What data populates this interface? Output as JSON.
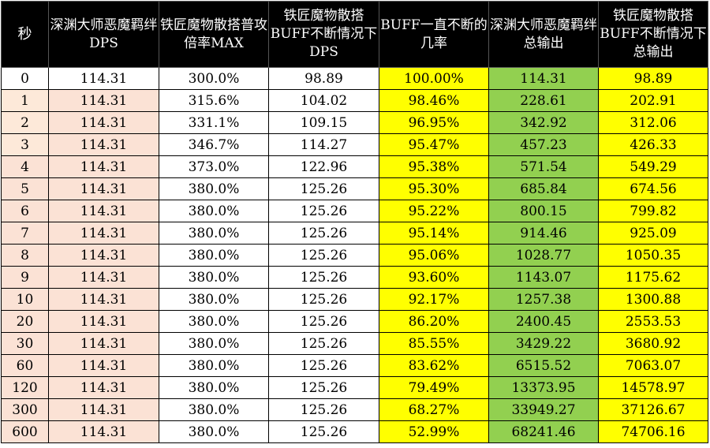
{
  "colors": {
    "header_bg": "#000000",
    "header_text": "#ffffff",
    "yellow": "#ffff00",
    "green": "#92d050",
    "peach": "#fbe2d5",
    "light_peach": "#fde9d9"
  },
  "headers": [
    "秒",
    "深渊大师恶魔羁绊DPS",
    "铁匠魔物散搭普攻倍率MAX",
    "铁匠魔物散搭BUFF不断情况下DPS",
    "BUFF一直不断的几率",
    "深渊大师恶魔羁绊总输出",
    "铁匠魔物散搭BUFF不断情况下总输出"
  ],
  "rows": [
    [
      "0",
      "114.31",
      "300.0%",
      "98.89",
      "100.00%",
      "114.31",
      "98.89"
    ],
    [
      "1",
      "114.31",
      "315.6%",
      "104.02",
      "98.46%",
      "228.61",
      "202.91"
    ],
    [
      "2",
      "114.31",
      "331.1%",
      "109.15",
      "96.95%",
      "342.92",
      "312.06"
    ],
    [
      "3",
      "114.31",
      "346.7%",
      "114.27",
      "95.47%",
      "457.23",
      "426.33"
    ],
    [
      "4",
      "114.31",
      "373.0%",
      "122.96",
      "95.38%",
      "571.54",
      "549.29"
    ],
    [
      "5",
      "114.31",
      "380.0%",
      "125.26",
      "95.30%",
      "685.84",
      "674.56"
    ],
    [
      "6",
      "114.31",
      "380.0%",
      "125.26",
      "95.22%",
      "800.15",
      "799.82"
    ],
    [
      "7",
      "114.31",
      "380.0%",
      "125.26",
      "95.14%",
      "914.46",
      "925.09"
    ],
    [
      "8",
      "114.31",
      "380.0%",
      "125.26",
      "95.06%",
      "1028.77",
      "1050.35"
    ],
    [
      "9",
      "114.31",
      "380.0%",
      "125.26",
      "93.60%",
      "1143.07",
      "1175.62"
    ],
    [
      "10",
      "114.31",
      "380.0%",
      "125.26",
      "92.17%",
      "1257.38",
      "1300.88"
    ],
    [
      "20",
      "114.31",
      "380.0%",
      "125.26",
      "86.20%",
      "2400.45",
      "2553.53"
    ],
    [
      "30",
      "114.31",
      "380.0%",
      "125.26",
      "85.55%",
      "3429.22",
      "3680.92"
    ],
    [
      "60",
      "114.31",
      "380.0%",
      "125.26",
      "83.62%",
      "6515.52",
      "7063.07"
    ],
    [
      "120",
      "114.31",
      "380.0%",
      "125.26",
      "79.49%",
      "13373.95",
      "14578.97"
    ],
    [
      "300",
      "114.31",
      "380.0%",
      "125.26",
      "68.27%",
      "33949.27",
      "37126.67"
    ],
    [
      "600",
      "114.31",
      "380.0%",
      "125.26",
      "52.99%",
      "68241.46",
      "74706.16"
    ]
  ]
}
